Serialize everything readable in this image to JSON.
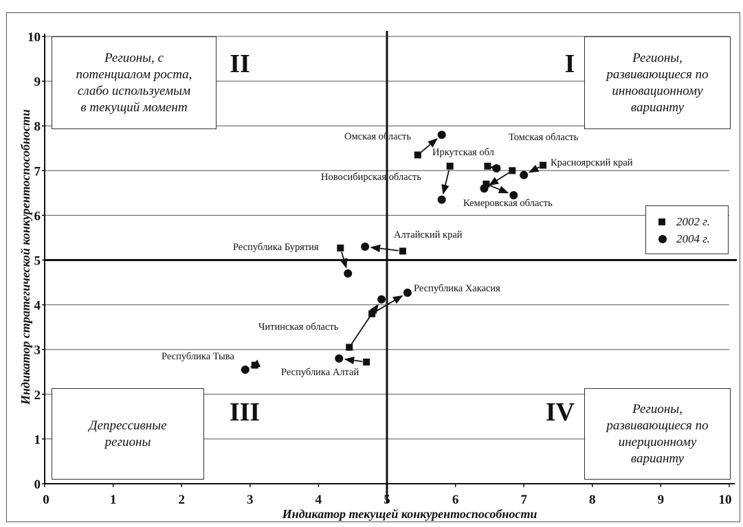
{
  "chart_data": {
    "type": "scatter",
    "xlabel": "Индикатор текущей конкурентоспособности",
    "ylabel": "Индикатор стратегической конкурентоспособности",
    "xlim": [
      0,
      10
    ],
    "ylim": [
      0,
      10
    ],
    "x_ticks": [
      "0",
      "1",
      "2",
      "3",
      "4",
      "5",
      "6",
      "7",
      "8",
      "9",
      "10"
    ],
    "y_ticks": [
      "0",
      "1",
      "2",
      "3",
      "4",
      "5",
      "6",
      "7",
      "8",
      "9",
      "10"
    ],
    "grid": "horizontal",
    "divider_x": 5,
    "divider_y": 5,
    "legend": {
      "placement": "right",
      "entries": [
        "2002 г.",
        "2004 г."
      ]
    },
    "series": [
      {
        "name": "2002 г.",
        "marker": "square"
      },
      {
        "name": "2004 г.",
        "marker": "circle"
      }
    ],
    "regions": [
      {
        "label": "Омская область",
        "x2002": 5.45,
        "y2002": 7.35,
        "x2004": 5.8,
        "y2004": 7.8
      },
      {
        "label": "Иркутская обл",
        "x2002": 5.92,
        "y2002": 7.1,
        "x2004": 5.8,
        "y2004": 6.35
      },
      {
        "label": "Новосибирская область",
        "x2002": 6.47,
        "y2002": 7.1,
        "x2004": 6.6,
        "y2004": 7.05
      },
      {
        "label": "Томская область",
        "x2002": 6.83,
        "y2002": 7.0,
        "x2004": 6.42,
        "y2004": 6.6
      },
      {
        "label": "Красноярский край",
        "x2002": 7.28,
        "y2002": 7.12,
        "x2004": 7.0,
        "y2004": 6.9
      },
      {
        "label": "Кемеровская область",
        "x2002": 6.45,
        "y2002": 6.7,
        "x2004": 6.85,
        "y2004": 6.45
      },
      {
        "label": "Алтайский край",
        "x2002": 5.23,
        "y2002": 5.2,
        "x2004": 4.68,
        "y2004": 5.3
      },
      {
        "label": "Республика Бурятия",
        "x2002": 4.32,
        "y2002": 5.27,
        "x2004": 4.43,
        "y2004": 4.7
      },
      {
        "label": "Республика Хакасия",
        "x2002": 4.78,
        "y2002": 3.8,
        "x2004": 5.3,
        "y2004": 4.27
      },
      {
        "label": "Читинская область",
        "x2002": 4.45,
        "y2002": 3.05,
        "x2004": 4.92,
        "y2004": 4.12
      },
      {
        "label": "Республика Алтай",
        "x2002": 4.7,
        "y2002": 2.72,
        "x2004": 4.3,
        "y2004": 2.8
      },
      {
        "label": "Республика Тыва",
        "x2002": 3.07,
        "y2002": 2.65,
        "x2004": 2.93,
        "y2004": 2.55
      }
    ]
  },
  "quadrants": {
    "I": {
      "numeral": "I",
      "text": "Регионы,\nразвивающиеся по\nинновационному\nварианту"
    },
    "II": {
      "numeral": "II",
      "text": "Регионы, с\nпотенциалом роста,\nслабо используемым\nв текущий момент"
    },
    "III": {
      "numeral": "III",
      "text": "Депрессивные\nрегионы"
    },
    "IV": {
      "numeral": "IV",
      "text": "Регионы,\nразвивающиеся по\nинерционному\nварианту"
    }
  },
  "legend": {
    "label_2002": "2002 г.",
    "label_2004": "2004 г."
  },
  "colors": {
    "ink": "#111111",
    "grid": "#555555",
    "background": "#ffffff"
  }
}
